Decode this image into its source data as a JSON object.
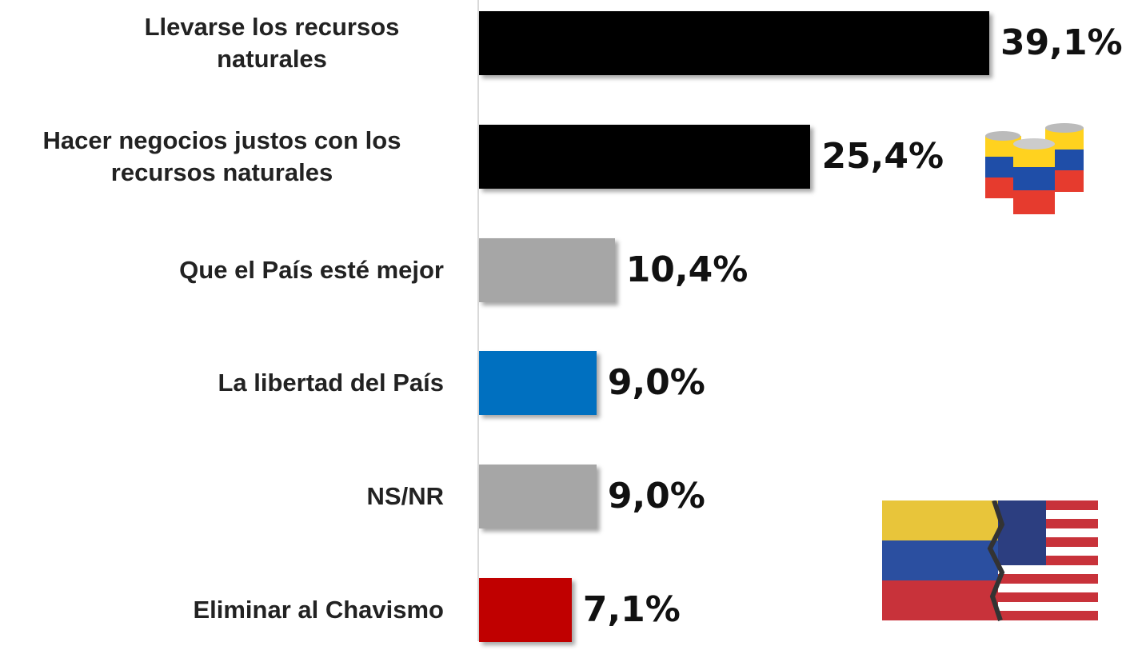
{
  "chart_data": {
    "type": "bar",
    "orientation": "horizontal",
    "categories": [
      "Llevarse los recursos naturales",
      "Hacer negocios justos con los recursos naturales",
      "Que el País esté mejor",
      "La libertad del País",
      "NS/NR",
      "Eliminar al Chavismo"
    ],
    "values": [
      39.1,
      25.4,
      10.4,
      9.0,
      9.0,
      7.1
    ],
    "value_labels": [
      "39,1%",
      "25,4%",
      "10,4%",
      "9,0%",
      "9,0%",
      "7,1%"
    ],
    "colors": [
      "#000000",
      "#000000",
      "#a6a6a6",
      "#0070c0",
      "#a6a6a6",
      "#c00000"
    ]
  }
}
